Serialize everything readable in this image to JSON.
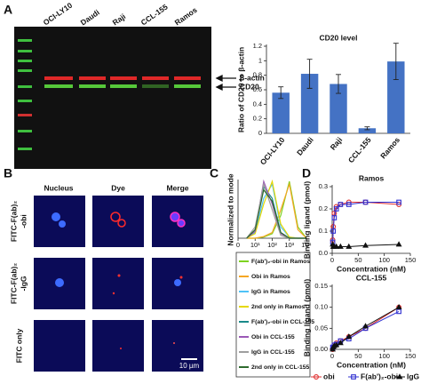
{
  "panel_labels": [
    "A",
    "B",
    "C",
    "D"
  ],
  "blot": {
    "lanes": [
      "OCI-LY10",
      "Daudi",
      "Raji",
      "CCL-155",
      "Ramos"
    ],
    "bands": [
      "β-actin",
      "CD20"
    ]
  },
  "microscopy": {
    "columns": [
      "Nucleus",
      "Dye",
      "Merge"
    ],
    "rows": [
      [
        "FITC-F(ab)₂",
        "-obi"
      ],
      [
        "FITC-F(ab)₂",
        "-IgG"
      ],
      [
        "FITC only"
      ]
    ],
    "scale_bar": "10 µm"
  },
  "chart_data": [
    {
      "type": "bar",
      "title": "CD20 level",
      "ylabel": "Ratio of CD20 to β-actin",
      "categories": [
        "OCI-LY10",
        "Daudi",
        "Raji",
        "CCL-155",
        "Ramos"
      ],
      "values": [
        0.56,
        0.82,
        0.68,
        0.07,
        0.99
      ],
      "errors": [
        0.08,
        0.2,
        0.13,
        0.02,
        0.25
      ],
      "color": "#4472c4",
      "ylim": [
        0,
        1.2
      ],
      "yticks": [
        0,
        0.2,
        0.4,
        0.6,
        0.8,
        1,
        1.2
      ]
    },
    {
      "type": "line",
      "ylabel": "Normalized to mode",
      "x": [
        0.5,
        1,
        1.5,
        2,
        2.5,
        3,
        3.5,
        4
      ],
      "xlim": [
        0,
        4
      ],
      "xticks": [
        0,
        {
          "value": 1,
          "label": "10¹"
        },
        {
          "value": 2,
          "label": "10²"
        },
        {
          "value": 3,
          "label": "10³"
        },
        {
          "value": 4,
          "label": "10⁴"
        }
      ],
      "ylim": [
        0,
        100
      ],
      "legend": "below",
      "series": [
        {
          "name": "F(ab')₂-obi in Ramos",
          "color": "#7ed321",
          "values": [
            0,
            0,
            2,
            8,
            40,
            100,
            20,
            0
          ]
        },
        {
          "name": "Obi in Ramos",
          "color": "#f5a623",
          "values": [
            0,
            0,
            3,
            10,
            50,
            95,
            15,
            0
          ]
        },
        {
          "name": "IgG in Ramos",
          "color": "#4fc3f7",
          "values": [
            0,
            10,
            70,
            95,
            20,
            2,
            0,
            0
          ]
        },
        {
          "name": "2nd only in Ramos",
          "color": "#e6d800",
          "values": [
            0,
            8,
            60,
            100,
            25,
            2,
            0,
            0
          ]
        },
        {
          "name": "F(ab')₂-obi in CCL-155",
          "color": "#1a8a8a",
          "values": [
            0,
            15,
            90,
            70,
            10,
            0,
            0,
            0
          ]
        },
        {
          "name": "Obi in CCL-155",
          "color": "#9b59b6",
          "values": [
            0,
            12,
            100,
            60,
            8,
            0,
            0,
            0
          ]
        },
        {
          "name": "IgG in CCL-155",
          "color": "#9e9e9e",
          "values": [
            0,
            20,
            95,
            50,
            5,
            0,
            0,
            0
          ]
        },
        {
          "name": "2nd only in CCL-155",
          "color": "#2e6b2e",
          "values": [
            0,
            15,
            85,
            65,
            10,
            0,
            0,
            0
          ]
        }
      ]
    },
    {
      "type": "scatter",
      "title": "Ramos",
      "ylabel": "Binding ligand (pmol)",
      "xlabel": "Concentration (nM)",
      "x": [
        1,
        2,
        4,
        8,
        16,
        32,
        64,
        128
      ],
      "xlim": [
        0,
        150
      ],
      "xticks": [
        0,
        50,
        100,
        150
      ],
      "ylim": [
        0,
        0.3
      ],
      "yticks": [
        {
          "value": 0,
          "label": "0.0"
        },
        0.1,
        0.2,
        0.3
      ],
      "legend": "bottom",
      "series": [
        {
          "name": "obi",
          "color": "#e03030",
          "marker": "circle",
          "values": [
            0.06,
            0.12,
            0.18,
            0.21,
            0.22,
            0.23,
            0.23,
            0.22
          ]
        },
        {
          "name": "F(ab')₂-obi",
          "color": "#3030d0",
          "marker": "square",
          "values": [
            0.05,
            0.1,
            0.16,
            0.2,
            0.22,
            0.22,
            0.23,
            0.23
          ]
        },
        {
          "name": "IgG",
          "color": "#111111",
          "marker": "triangle",
          "values": [
            0.04,
            0.03,
            0.03,
            0.03,
            0.03,
            0.03,
            0.035,
            0.04
          ]
        }
      ]
    },
    {
      "type": "scatter",
      "title": "CCL-155",
      "ylabel": "Binding ligand (pmol)",
      "xlabel": "Concentration (nM)",
      "x": [
        1,
        2,
        4,
        8,
        16,
        32,
        64,
        128
      ],
      "xlim": [
        0,
        150
      ],
      "xticks": [
        0,
        50,
        100,
        150
      ],
      "ylim": [
        0,
        0.15
      ],
      "yticks": [
        {
          "value": 0,
          "label": "0.00"
        },
        0.05,
        {
          "value": 0.1,
          "label": "0.10"
        },
        0.15
      ],
      "series": [
        {
          "color": "#e03030",
          "marker": "circle",
          "values": [
            0,
            0.005,
            0.01,
            0.015,
            0.02,
            0.03,
            0.05,
            0.1
          ]
        },
        {
          "color": "#3030d0",
          "marker": "square",
          "values": [
            0.005,
            0.005,
            0.01,
            0.012,
            0.02,
            0.025,
            0.05,
            0.09
          ]
        },
        {
          "color": "#111111",
          "marker": "triangle",
          "values": [
            0,
            0.005,
            0.008,
            0.01,
            0.015,
            0.03,
            0.055,
            0.1
          ]
        }
      ]
    }
  ]
}
